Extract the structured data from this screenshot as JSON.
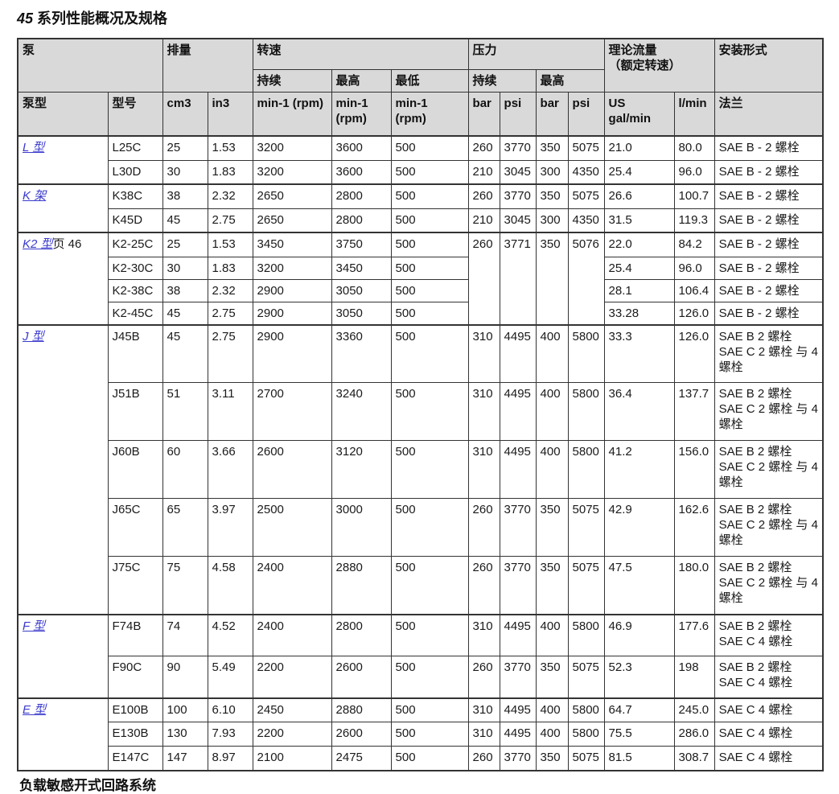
{
  "title": {
    "num": "45",
    "text": " 系列性能概况及规格"
  },
  "footer_partial": "负载敏感开式回路系统",
  "colors": {
    "link_blue": "#3A3ACD",
    "header_bg": "#D9D9D9",
    "border": "#333333"
  },
  "header": {
    "pump": "泵",
    "displacement": "排量",
    "speed": "转速",
    "pressure": "压力",
    "flow_line1": "理论流量",
    "flow_line2": "（额定转速）",
    "mounting": "安装形式",
    "speed_cont": "持续",
    "speed_max": "最高",
    "speed_min": "最低",
    "press_cont": "持续",
    "press_max": "最高",
    "pump_type": "泵型",
    "model": "型号",
    "unit_cm3": "cm3",
    "unit_in3": "in3",
    "unit_rpm": "min-1 (rpm)",
    "unit_rpm_l1": "min-1",
    "unit_rpm_l2": "(rpm)",
    "unit_bar": "bar",
    "unit_psi": "psi",
    "unit_usgal": "US gal/min",
    "unit_lmin": "l/min",
    "flange": "法兰"
  },
  "groups": [
    {
      "label": "L 型"
    },
    {
      "label": "K 架"
    },
    {
      "label": "K2 型",
      "suffix": "页 46"
    },
    {
      "label": "J 型"
    },
    {
      "label": "F 型"
    },
    {
      "label": "E 型"
    }
  ],
  "rows": [
    {
      "model": "L25C",
      "cm3": "25",
      "in3": "1.53",
      "rpm_cont": "3200",
      "rpm_max": "3600",
      "rpm_min": "500",
      "bar_cont": "260",
      "psi_cont": "3770",
      "bar_max": "350",
      "psi_max": "5075",
      "usgal": "21.0",
      "lmin": "80.0",
      "flange1": "SAE B - 2 螺栓"
    },
    {
      "model": "L30D",
      "cm3": "30",
      "in3": "1.83",
      "rpm_cont": "3200",
      "rpm_max": "3600",
      "rpm_min": "500",
      "bar_cont": "210",
      "psi_cont": "3045",
      "bar_max": "300",
      "psi_max": "4350",
      "usgal": "25.4",
      "lmin": "96.0",
      "flange1": "SAE B - 2 螺栓"
    },
    {
      "model": "K38C",
      "cm3": "38",
      "in3": "2.32",
      "rpm_cont": "2650",
      "rpm_max": "2800",
      "rpm_min": "500",
      "bar_cont": "260",
      "psi_cont": "3770",
      "bar_max": "350",
      "psi_max": "5075",
      "usgal": "26.6",
      "lmin": "100.7",
      "flange1": "SAE B - 2 螺栓"
    },
    {
      "model": "K45D",
      "cm3": "45",
      "in3": "2.75",
      "rpm_cont": "2650",
      "rpm_max": "2800",
      "rpm_min": "500",
      "bar_cont": "210",
      "psi_cont": "3045",
      "bar_max": "300",
      "psi_max": "4350",
      "usgal": "31.5",
      "lmin": "119.3",
      "flange1": "SAE B - 2 螺栓"
    },
    {
      "model": "K2-25C",
      "cm3": "25",
      "in3": "1.53",
      "rpm_cont": "3450",
      "rpm_max": "3750",
      "rpm_min": "500",
      "bar_cont": "260",
      "psi_cont": "3771",
      "bar_max": "350",
      "psi_max": "5076",
      "usgal": "22.0",
      "lmin": "84.2",
      "flange1": "SAE B - 2 螺栓"
    },
    {
      "model": "K2-30C",
      "cm3": "30",
      "in3": "1.83",
      "rpm_cont": "3200",
      "rpm_max": "3450",
      "rpm_min": "500",
      "usgal": "25.4",
      "lmin": "96.0",
      "flange1": "SAE B - 2 螺栓"
    },
    {
      "model": "K2-38C",
      "cm3": "38",
      "in3": "2.32",
      "rpm_cont": "2900",
      "rpm_max": "3050",
      "rpm_min": "500",
      "usgal": "28.1",
      "lmin": "106.4",
      "flange1": "SAE B - 2 螺栓"
    },
    {
      "model": "K2-45C",
      "cm3": "45",
      "in3": "2.75",
      "rpm_cont": "2900",
      "rpm_max": "3050",
      "rpm_min": "500",
      "usgal": "33.28",
      "lmin": "126.0",
      "flange1": "SAE B - 2 螺栓"
    },
    {
      "model": "J45B",
      "cm3": "45",
      "in3": "2.75",
      "rpm_cont": "2900",
      "rpm_max": "3360",
      "rpm_min": "500",
      "bar_cont": "310",
      "psi_cont": "4495",
      "bar_max": "400",
      "psi_max": "5800",
      "usgal": "33.3",
      "lmin": "126.0",
      "flange1": "SAE B 2 螺栓",
      "flange2": "SAE C 2 螺栓 与 4 螺栓"
    },
    {
      "model": "J51B",
      "cm3": "51",
      "in3": "3.11",
      "rpm_cont": "2700",
      "rpm_max": "3240",
      "rpm_min": "500",
      "bar_cont": "310",
      "psi_cont": "4495",
      "bar_max": "400",
      "psi_max": "5800",
      "usgal": "36.4",
      "lmin": "137.7",
      "flange1": "SAE B 2 螺栓",
      "flange2": "SAE C 2 螺栓 与 4 螺栓"
    },
    {
      "model": "J60B",
      "cm3": "60",
      "in3": "3.66",
      "rpm_cont": "2600",
      "rpm_max": "3120",
      "rpm_min": "500",
      "bar_cont": "310",
      "psi_cont": "4495",
      "bar_max": "400",
      "psi_max": "5800",
      "usgal": "41.2",
      "lmin": "156.0",
      "flange1": "SAE B 2 螺栓",
      "flange2": "SAE C 2 螺栓 与 4 螺栓"
    },
    {
      "model": "J65C",
      "cm3": "65",
      "in3": "3.97",
      "rpm_cont": "2500",
      "rpm_max": "3000",
      "rpm_min": "500",
      "bar_cont": "260",
      "psi_cont": "3770",
      "bar_max": "350",
      "psi_max": "5075",
      "usgal": "42.9",
      "lmin": "162.6",
      "flange1": "SAE B 2 螺栓",
      "flange2": "SAE C 2 螺栓 与 4 螺栓"
    },
    {
      "model": "J75C",
      "cm3": "75",
      "in3": "4.58",
      "rpm_cont": "2400",
      "rpm_max": "2880",
      "rpm_min": "500",
      "bar_cont": "260",
      "psi_cont": "3770",
      "bar_max": "350",
      "psi_max": "5075",
      "usgal": "47.5",
      "lmin": "180.0",
      "flange1": "SAE B 2 螺栓",
      "flange2": "SAE C 2 螺栓 与 4 螺栓"
    },
    {
      "model": "F74B",
      "cm3": "74",
      "in3": "4.52",
      "rpm_cont": "2400",
      "rpm_max": "2800",
      "rpm_min": "500",
      "bar_cont": "310",
      "psi_cont": "4495",
      "bar_max": "400",
      "psi_max": "5800",
      "usgal": "46.9",
      "lmin": "177.6",
      "flange1": "SAE B 2 螺栓",
      "flange2": "SAE C 4 螺栓"
    },
    {
      "model": "F90C",
      "cm3": "90",
      "in3": "5.49",
      "rpm_cont": "2200",
      "rpm_max": "2600",
      "rpm_min": "500",
      "bar_cont": "260",
      "psi_cont": "3770",
      "bar_max": "350",
      "psi_max": "5075",
      "usgal": "52.3",
      "lmin": "198",
      "flange1": "SAE B 2 螺栓",
      "flange2": "SAE C 4 螺栓"
    },
    {
      "model": "E100B",
      "cm3": "100",
      "in3": "6.10",
      "rpm_cont": "2450",
      "rpm_max": "2880",
      "rpm_min": "500",
      "bar_cont": "310",
      "psi_cont": "4495",
      "bar_max": "400",
      "psi_max": "5800",
      "usgal": "64.7",
      "lmin": "245.0",
      "flange1": "SAE C 4 螺栓"
    },
    {
      "model": "E130B",
      "cm3": "130",
      "in3": "7.93",
      "rpm_cont": "2200",
      "rpm_max": "2600",
      "rpm_min": "500",
      "bar_cont": "310",
      "psi_cont": "4495",
      "bar_max": "400",
      "psi_max": "5800",
      "usgal": "75.5",
      "lmin": "286.0",
      "flange1": "SAE C 4 螺栓"
    },
    {
      "model": "E147C",
      "cm3": "147",
      "in3": "8.97",
      "rpm_cont": "2100",
      "rpm_max": "2475",
      "rpm_min": "500",
      "bar_cont": "260",
      "psi_cont": "3770",
      "bar_max": "350",
      "psi_max": "5075",
      "usgal": "81.5",
      "lmin": "308.7",
      "flange1": "SAE C 4 螺栓"
    }
  ]
}
